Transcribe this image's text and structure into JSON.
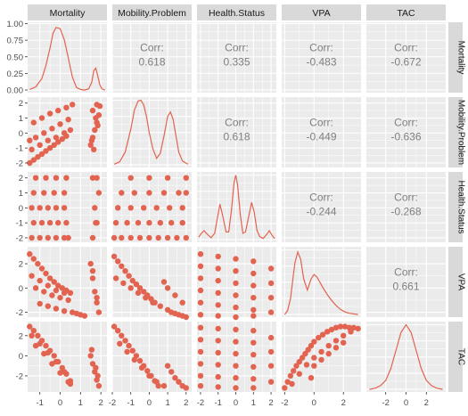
{
  "chart_data": {
    "type": "scatter-matrix",
    "variables": [
      "Mortality",
      "Mobility.Problem",
      "Health.Status",
      "VPA",
      "TAC"
    ],
    "colors": {
      "points": "#E2634F",
      "panel_bg": "#EBEBEB",
      "strip_bg": "#D9D9D9",
      "grid": "#FFFFFF",
      "text": "#4D4D4D",
      "corr_text": "#7F7F7F"
    },
    "correlations": [
      {
        "row": "Mobility.Problem",
        "col": "Mortality",
        "label": "Corr:",
        "value": "0.618"
      },
      {
        "row": "Health.Status",
        "col": "Mortality",
        "label": "Corr:",
        "value": "0.335"
      },
      {
        "row": "VPA",
        "col": "Mortality",
        "label": "Corr:",
        "value": "-0.483"
      },
      {
        "row": "TAC",
        "col": "Mortality",
        "label": "Corr:",
        "value": "-0.672"
      },
      {
        "row": "Health.Status",
        "col": "Mobility.Problem",
        "label": "Corr:",
        "value": "0.618"
      },
      {
        "row": "VPA",
        "col": "Mobility.Problem",
        "label": "Corr:",
        "value": "-0.449"
      },
      {
        "row": "TAC",
        "col": "Mobility.Problem",
        "label": "Corr:",
        "value": "-0.636"
      },
      {
        "row": "VPA",
        "col": "Health.Status",
        "label": "Corr:",
        "value": "-0.244"
      },
      {
        "row": "TAC",
        "col": "Health.Status",
        "label": "Corr:",
        "value": "-0.268"
      },
      {
        "row": "TAC",
        "col": "VPA",
        "label": "Corr:",
        "value": "0.661"
      }
    ],
    "x_axes": [
      {
        "variable": "Mortality",
        "range": [
          -1.6,
          2.3
        ],
        "ticks": [
          -1,
          0,
          1,
          2
        ]
      },
      {
        "variable": "Mobility.Problem",
        "range": [
          -2.0,
          2.3
        ],
        "ticks": [
          -2,
          -1,
          0,
          1,
          2
        ]
      },
      {
        "variable": "Health.Status",
        "range": [
          -2.2,
          2.3
        ],
        "ticks": [
          -2,
          -1,
          0,
          1,
          2
        ]
      },
      {
        "variable": "VPA",
        "range": [
          -2.2,
          3.2
        ],
        "ticks": [
          -2,
          0,
          2
        ]
      },
      {
        "variable": "TAC",
        "range": [
          -3.9,
          3.9
        ],
        "ticks": [
          -2,
          0,
          2
        ]
      }
    ],
    "y_axes": [
      {
        "variable": "Mortality",
        "range": [
          -0.04,
          1.02
        ],
        "ticks": [
          "0.00",
          "0.25",
          "0.50",
          "0.75",
          "1.00"
        ],
        "tick_values": [
          0,
          0.25,
          0.5,
          0.75,
          1.0
        ]
      },
      {
        "variable": "Mobility.Problem",
        "range": [
          -2.3,
          2.4
        ],
        "ticks": [
          "2",
          "1",
          "0",
          "-1",
          "-2"
        ],
        "tick_values": [
          2,
          1,
          0,
          -1,
          -2
        ]
      },
      {
        "variable": "Health.Status",
        "range": [
          -2.3,
          2.4
        ],
        "ticks": [
          "2",
          "1",
          "0",
          "-1",
          "-2"
        ],
        "tick_values": [
          2,
          1,
          0,
          -1,
          -2
        ]
      },
      {
        "variable": "VPA",
        "range": [
          -2.4,
          3.4
        ],
        "ticks": [
          "2",
          "0",
          "-2"
        ],
        "tick_values": [
          2,
          0,
          -2
        ]
      },
      {
        "variable": "TAC",
        "range": [
          -3.6,
          3.4
        ],
        "ticks": [
          "2",
          "0",
          "-2"
        ],
        "tick_values": [
          2,
          0,
          -2
        ]
      }
    ],
    "densities": [
      {
        "variable": "Mortality",
        "x": [
          -1.5,
          -1.2,
          -0.9,
          -0.7,
          -0.5,
          -0.35,
          -0.2,
          0.0,
          0.2,
          0.4,
          0.6,
          0.8,
          1.0,
          1.2,
          1.4,
          1.55,
          1.65,
          1.75,
          1.85,
          1.95,
          2.05,
          2.2
        ],
        "y": [
          0.01,
          0.05,
          0.18,
          0.38,
          0.65,
          0.88,
          0.97,
          0.95,
          0.78,
          0.5,
          0.2,
          0.04,
          0.01,
          0.0,
          0.02,
          0.12,
          0.3,
          0.34,
          0.22,
          0.08,
          0.02,
          0.0
        ]
      },
      {
        "variable": "Mobility.Problem",
        "x": [
          -1.9,
          -1.6,
          -1.3,
          -1.0,
          -0.8,
          -0.6,
          -0.45,
          -0.3,
          -0.15,
          0.0,
          0.2,
          0.4,
          0.6,
          0.8,
          1.0,
          1.15,
          1.3,
          1.45,
          1.6,
          1.8,
          2.1
        ],
        "y": [
          0.01,
          0.05,
          0.2,
          0.55,
          0.85,
          0.99,
          1.0,
          0.93,
          0.75,
          0.5,
          0.25,
          0.1,
          0.18,
          0.45,
          0.75,
          0.82,
          0.7,
          0.45,
          0.2,
          0.06,
          0.01
        ]
      },
      {
        "variable": "Health.Status",
        "x": [
          -2.1,
          -1.95,
          -1.8,
          -1.6,
          -1.4,
          -1.2,
          -1.05,
          -0.9,
          -0.75,
          -0.55,
          -0.4,
          -0.25,
          -0.1,
          0.0,
          0.1,
          0.25,
          0.4,
          0.55,
          0.75,
          0.9,
          1.05,
          1.2,
          1.35,
          1.55,
          1.75,
          1.9,
          2.05,
          2.2
        ],
        "y": [
          0.04,
          0.1,
          0.14,
          0.08,
          0.03,
          0.1,
          0.32,
          0.55,
          0.38,
          0.12,
          0.12,
          0.45,
          0.88,
          1.0,
          0.85,
          0.4,
          0.1,
          0.12,
          0.38,
          0.58,
          0.42,
          0.15,
          0.05,
          0.02,
          0.08,
          0.14,
          0.07,
          0.02
        ]
      },
      {
        "variable": "VPA",
        "x": [
          -2.0,
          -1.8,
          -1.6,
          -1.3,
          -1.1,
          -0.9,
          -0.7,
          -0.45,
          -0.2,
          0.0,
          0.2,
          0.4,
          0.6,
          0.9,
          1.2,
          1.5,
          1.8,
          2.1,
          2.4,
          2.7,
          3.0
        ],
        "y": [
          0.0,
          0.06,
          0.25,
          0.8,
          0.97,
          0.85,
          0.55,
          0.38,
          0.55,
          0.62,
          0.58,
          0.5,
          0.42,
          0.31,
          0.22,
          0.14,
          0.08,
          0.04,
          0.02,
          0.01,
          0.0
        ]
      },
      {
        "variable": "TAC",
        "x": [
          -3.6,
          -3.0,
          -2.5,
          -2.0,
          -1.5,
          -1.0,
          -0.5,
          0.0,
          0.5,
          1.0,
          1.5,
          2.0,
          2.5,
          3.0,
          3.6
        ],
        "y": [
          0.0,
          0.02,
          0.06,
          0.14,
          0.32,
          0.6,
          0.88,
          1.0,
          0.88,
          0.6,
          0.32,
          0.14,
          0.06,
          0.02,
          0.0
        ]
      }
    ],
    "scatter_panels": [
      {
        "row": "Mobility.Problem",
        "col": "Mortality",
        "x": [
          -1.5,
          -1.3,
          -1.1,
          -0.9,
          -0.7,
          -0.5,
          -0.3,
          -0.1,
          0.1,
          0.3,
          -1.4,
          -1.0,
          -0.6,
          -0.2,
          0.2,
          0.5,
          -1.5,
          -1.2,
          -0.8,
          -0.4,
          0.0,
          0.4,
          -1.3,
          -0.9,
          -0.5,
          -0.1,
          0.3,
          0.6,
          1.5,
          1.6,
          1.7,
          1.8,
          1.9,
          1.6,
          1.8,
          1.65,
          1.85,
          1.95,
          1.55,
          1.75
        ],
        "y": [
          -2.0,
          -1.8,
          -1.6,
          -1.4,
          -1.2,
          -1.0,
          -0.8,
          -0.6,
          -0.4,
          -0.2,
          -1.1,
          -0.8,
          -0.5,
          -0.3,
          0.0,
          0.2,
          -0.5,
          -0.3,
          0.0,
          0.3,
          0.6,
          0.9,
          0.7,
          1.0,
          1.3,
          1.5,
          1.7,
          1.9,
          -0.8,
          -0.3,
          0.2,
          0.7,
          1.2,
          1.5,
          1.9,
          -1.1,
          0.5,
          1.8,
          -0.5,
          1.0
        ]
      },
      {
        "row": "Health.Status",
        "col": "Mortality",
        "x": [
          -1.4,
          -1.0,
          -0.6,
          -0.2,
          0.2,
          0.4,
          -1.3,
          -0.9,
          -0.5,
          -0.1,
          0.3,
          -1.4,
          -1.0,
          -0.6,
          -0.2,
          0.2,
          -1.3,
          -0.8,
          -0.3,
          0.2,
          -1.2,
          -0.7,
          -0.2,
          0.3,
          1.6,
          1.8,
          1.7,
          1.9,
          1.6,
          1.8,
          1.75
        ],
        "y": [
          -2,
          -2,
          -2,
          -2,
          -2,
          -2,
          -1,
          -1,
          -1,
          -1,
          -1,
          0,
          0,
          0,
          0,
          0,
          1,
          1,
          1,
          1,
          2,
          2,
          2,
          2,
          -2,
          -1,
          0,
          1,
          2,
          2,
          -1
        ]
      },
      {
        "row": "VPA",
        "col": "Mortality",
        "x": [
          -1.5,
          -1.3,
          -1.1,
          -0.9,
          -0.7,
          -0.5,
          -0.3,
          -0.1,
          0.1,
          0.3,
          0.5,
          -1.4,
          -1.0,
          -0.6,
          -0.2,
          0.2,
          -1.2,
          -0.8,
          -0.4,
          0.0,
          0.4,
          -1.0,
          -0.6,
          -0.2,
          0.2,
          0.6,
          0.8,
          1.0,
          1.2,
          1.5,
          1.6,
          1.7,
          1.8,
          1.9,
          1.6,
          1.8
        ],
        "y": [
          2.8,
          2.4,
          2.0,
          1.6,
          1.2,
          0.8,
          0.5,
          0.2,
          0.0,
          -0.2,
          -0.4,
          1.0,
          0.6,
          0.2,
          -0.2,
          -0.4,
          0.0,
          -0.3,
          -0.6,
          -0.8,
          -1.0,
          -1.3,
          -1.5,
          -1.7,
          -1.9,
          -2.0,
          -2.1,
          -2.2,
          -2.3,
          2.0,
          0.8,
          -0.3,
          -1.2,
          -2.0,
          1.4,
          -0.8
        ]
      },
      {
        "row": "TAC",
        "col": "Mortality",
        "x": [
          -1.5,
          -1.3,
          -1.1,
          -0.9,
          -0.7,
          -0.5,
          -0.3,
          -0.1,
          0.1,
          0.3,
          0.5,
          -1.4,
          -1.0,
          -0.6,
          -0.2,
          0.2,
          0.5,
          -1.2,
          -0.8,
          -0.4,
          0.0,
          0.4,
          1.5,
          1.6,
          1.7,
          1.8,
          1.9,
          1.55,
          1.75,
          1.85
        ],
        "y": [
          2.9,
          2.5,
          2.0,
          1.5,
          1.0,
          0.5,
          0.0,
          -0.6,
          -1.2,
          -1.8,
          -2.5,
          2.0,
          1.2,
          0.3,
          -0.6,
          -1.6,
          -2.8,
          1.0,
          0.2,
          -0.8,
          -1.7,
          -2.6,
          0.0,
          -0.8,
          -1.6,
          -2.4,
          -3.0,
          0.6,
          -1.2,
          -2.0
        ]
      },
      {
        "row": "Health.Status",
        "col": "Mobility.Problem",
        "x": [
          -1.9,
          -1.5,
          -1.0,
          -0.5,
          0.0,
          0.5,
          1.0,
          1.5,
          2.0,
          -1.8,
          -1.2,
          -0.6,
          0.0,
          0.6,
          1.2,
          1.8,
          -1.7,
          -1.0,
          -0.3,
          0.4,
          1.1,
          1.8,
          -1.5,
          -0.8,
          0.0,
          0.8,
          1.6,
          2.0,
          -1.0,
          0.0,
          1.0,
          2.0
        ],
        "y": [
          -2,
          -2,
          -2,
          -2,
          -2,
          -2,
          -2,
          -2,
          -2,
          -1,
          -1,
          -1,
          -1,
          -1,
          -1,
          -1,
          0,
          0,
          0,
          0,
          0,
          0,
          1,
          1,
          1,
          1,
          1,
          1,
          2,
          2,
          2,
          2
        ]
      },
      {
        "row": "VPA",
        "col": "Mobility.Problem",
        "x": [
          -1.9,
          -1.7,
          -1.5,
          -1.3,
          -1.1,
          -0.9,
          -0.7,
          -0.5,
          -0.3,
          -0.1,
          0.1,
          0.3,
          -1.8,
          -1.4,
          -1.0,
          -0.6,
          -0.2,
          0.2,
          0.6,
          1.0,
          1.2,
          1.4,
          1.6,
          1.8,
          2.0,
          0.8,
          1.0,
          1.4,
          1.8
        ],
        "y": [
          2.6,
          2.2,
          1.8,
          1.4,
          1.0,
          0.6,
          0.3,
          0.0,
          -0.3,
          -0.6,
          -0.9,
          -1.2,
          0.8,
          0.4,
          0.0,
          -0.4,
          -0.8,
          -1.2,
          -1.5,
          -1.8,
          -2.0,
          -2.1,
          -2.2,
          -2.3,
          -2.4,
          0.5,
          0.0,
          -0.6,
          -1.2
        ]
      },
      {
        "row": "TAC",
        "col": "Mobility.Problem",
        "x": [
          -1.9,
          -1.7,
          -1.5,
          -1.3,
          -1.1,
          -0.9,
          -0.7,
          -0.5,
          -0.3,
          -0.1,
          0.1,
          0.3,
          0.5,
          -1.6,
          -1.2,
          -0.8,
          -0.4,
          0.0,
          0.4,
          0.8,
          1.0,
          1.2,
          1.4,
          1.6,
          1.8,
          2.0
        ],
        "y": [
          2.9,
          2.5,
          2.0,
          1.5,
          1.0,
          0.5,
          0.0,
          -0.5,
          -1.0,
          -1.5,
          -2.0,
          -2.5,
          -3.0,
          1.2,
          0.4,
          -0.4,
          -1.2,
          -2.0,
          -2.6,
          -3.0,
          -1.0,
          -1.6,
          -2.2,
          -2.6,
          -3.0,
          -3.2
        ]
      },
      {
        "row": "VPA",
        "col": "Health.Status",
        "x": [
          -2,
          -2,
          -2,
          -2,
          -2,
          -2,
          -1,
          -1,
          -1,
          -1,
          -1,
          -1,
          0,
          0,
          0,
          0,
          0,
          0,
          1,
          1,
          1,
          1,
          1,
          1,
          2,
          2,
          2,
          2
        ],
        "y": [
          2.8,
          1.8,
          0.8,
          -0.2,
          -1.2,
          -2.2,
          2.6,
          1.6,
          0.6,
          -0.4,
          -1.4,
          -2.3,
          2.4,
          1.4,
          0.4,
          -0.6,
          -1.6,
          -2.4,
          2.2,
          1.2,
          0.2,
          -0.8,
          -1.8,
          -2.3,
          1.6,
          0.4,
          -0.8,
          -2.0
        ]
      },
      {
        "row": "TAC",
        "col": "Health.Status",
        "x": [
          -2,
          -2,
          -2,
          -2,
          -2,
          -2,
          -1,
          -1,
          -1,
          -1,
          -1,
          -1,
          0,
          0,
          0,
          0,
          0,
          0,
          1,
          1,
          1,
          1,
          1,
          1,
          2,
          2,
          2,
          2
        ],
        "y": [
          2.8,
          1.6,
          0.4,
          -0.8,
          -2.0,
          -3.0,
          2.7,
          1.5,
          0.3,
          -0.9,
          -2.1,
          -3.1,
          2.6,
          1.4,
          0.2,
          -1.0,
          -2.2,
          -3.2,
          2.5,
          1.3,
          0.1,
          -1.1,
          -2.3,
          -3.2,
          1.8,
          0.4,
          -1.0,
          -2.6
        ]
      },
      {
        "row": "TAC",
        "col": "VPA",
        "x": [
          -2.0,
          -1.8,
          -1.6,
          -1.4,
          -1.2,
          -1.0,
          -0.8,
          -0.6,
          -0.4,
          -0.2,
          0.0,
          0.3,
          0.6,
          0.9,
          1.2,
          1.5,
          1.8,
          2.1,
          2.4,
          2.7,
          3.0,
          -1.5,
          -1.0,
          -0.5,
          0.0,
          0.5,
          1.0,
          1.5,
          2.0,
          2.5,
          0.0,
          0.5,
          1.0,
          1.5,
          2.0,
          -0.2
        ],
        "y": [
          -3.2,
          -2.6,
          -2.0,
          -1.5,
          -1.0,
          -0.6,
          -0.2,
          0.2,
          0.6,
          1.0,
          1.4,
          1.8,
          2.1,
          2.4,
          2.6,
          2.8,
          2.9,
          2.9,
          2.8,
          2.8,
          2.7,
          -2.8,
          -1.8,
          -0.9,
          -0.2,
          0.4,
          1.0,
          1.5,
          2.0,
          2.4,
          -1.0,
          -0.4,
          0.2,
          0.8,
          1.3,
          -2.2
        ]
      }
    ]
  }
}
